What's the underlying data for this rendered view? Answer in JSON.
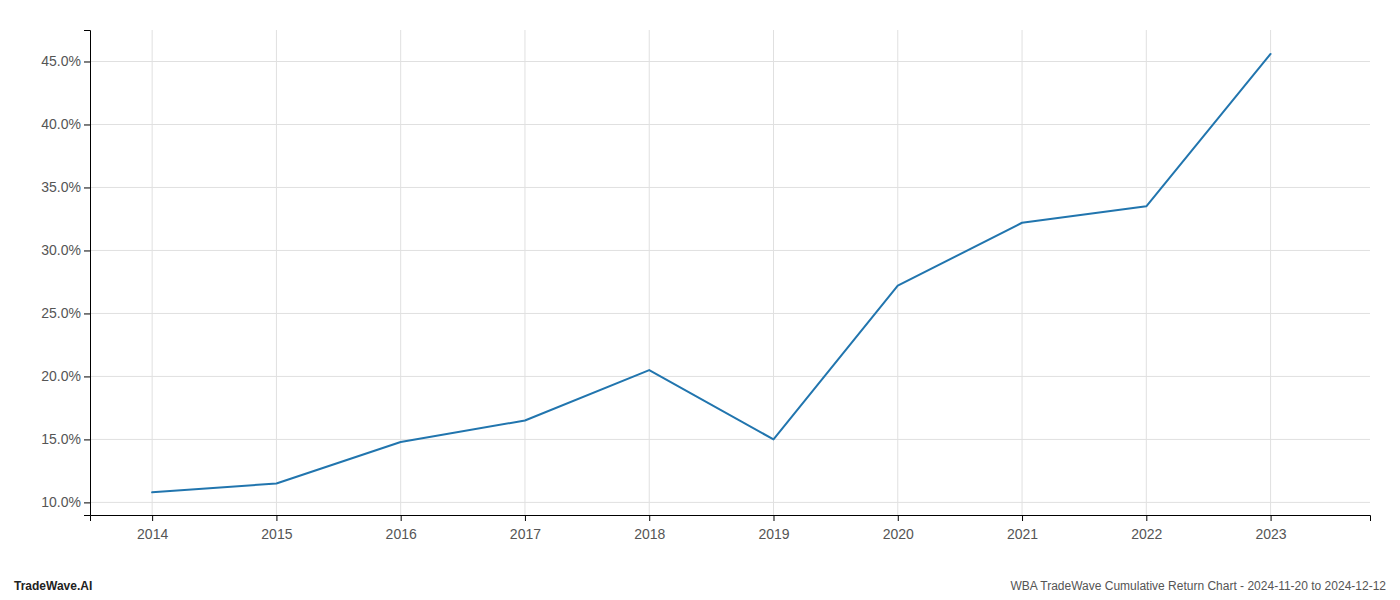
{
  "chart_data": {
    "type": "line",
    "x": [
      2014,
      2015,
      2016,
      2017,
      2018,
      2019,
      2020,
      2021,
      2022,
      2023
    ],
    "values": [
      10.8,
      11.5,
      14.8,
      16.5,
      20.5,
      15.0,
      27.2,
      32.2,
      33.5,
      45.6
    ],
    "color": "#2175ae",
    "xlim": [
      2013.5,
      2023.8
    ],
    "ylim": [
      9.0,
      47.5
    ],
    "xticks": [
      2014,
      2015,
      2016,
      2017,
      2018,
      2019,
      2020,
      2021,
      2022,
      2023
    ],
    "yticks": [
      {
        "value": 10.0,
        "label": "10.0%"
      },
      {
        "value": 15.0,
        "label": "15.0%"
      },
      {
        "value": 20.0,
        "label": "20.0%"
      },
      {
        "value": 25.0,
        "label": "25.0%"
      },
      {
        "value": 30.0,
        "label": "30.0%"
      },
      {
        "value": 35.0,
        "label": "35.0%"
      },
      {
        "value": 40.0,
        "label": "40.0%"
      },
      {
        "value": 45.0,
        "label": "45.0%"
      }
    ],
    "grid": true,
    "annotations": [
      "TradeWave.AI",
      "WBA TradeWave Cumulative Return Chart - 2024-11-20 to 2024-12-12"
    ]
  }
}
